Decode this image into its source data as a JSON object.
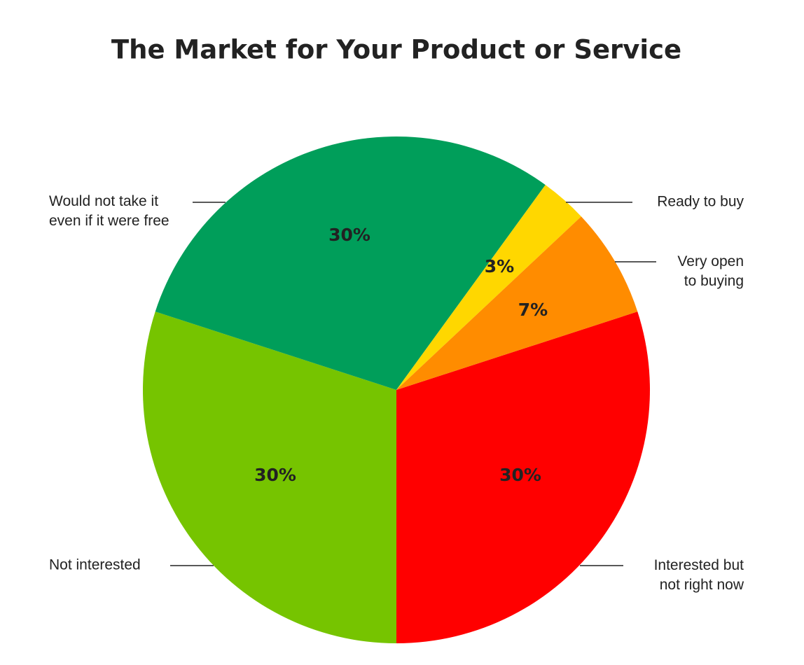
{
  "chart_data": {
    "type": "pie",
    "title": "The Market for Your Product or Service",
    "categories": [
      "Interested but\nnot right now",
      "Not interested",
      "Would not take it\neven if it were free",
      "Ready to buy",
      "Very open\nto buying"
    ],
    "values": [
      30,
      30,
      30,
      3,
      7
    ],
    "value_labels": [
      "30%",
      "30%",
      "30%",
      "3%",
      "7%"
    ],
    "colors": [
      "#ff0000",
      "#76c400",
      "#009e5a",
      "#ffd700",
      "#ff8c00"
    ]
  }
}
